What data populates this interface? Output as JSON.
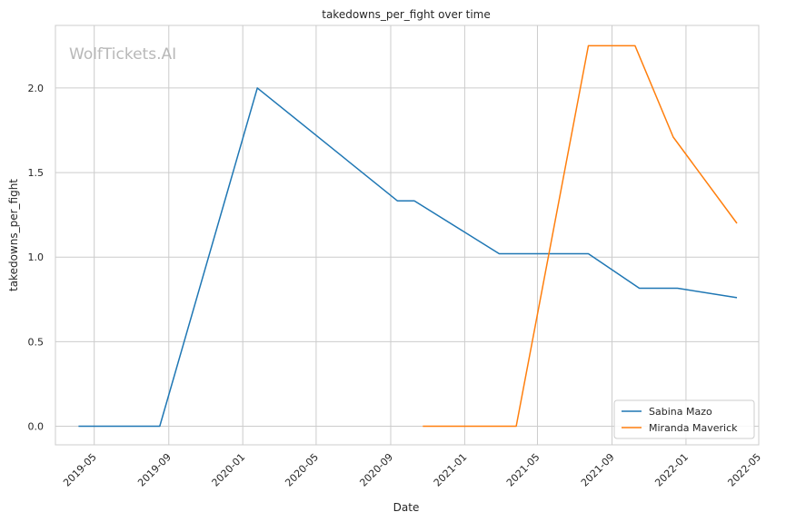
{
  "chart_data": {
    "type": "line",
    "title": "takedowns_per_fight over time",
    "xlabel": "Date",
    "ylabel": "takedowns_per_fight",
    "watermark": "WolfTickets.AI",
    "x_ticks": [
      "2019-05",
      "2019-09",
      "2020-01",
      "2020-05",
      "2020-09",
      "2021-01",
      "2021-05",
      "2021-09",
      "2022-01",
      "2022-05"
    ],
    "y_ticks": [
      "0.0",
      "0.5",
      "1.0",
      "1.5",
      "2.0"
    ],
    "xlim": [
      "2019-02-26",
      "2022-05-01"
    ],
    "ylim": [
      -0.11,
      2.37
    ],
    "grid": true,
    "legend_position": "lower right",
    "series": [
      {
        "name": "Sabina Mazo",
        "color": "#1f77b4",
        "x": [
          "2019-04-05",
          "2019-08-17",
          "2020-01-25",
          "2020-09-12",
          "2020-10-10",
          "2021-02-27",
          "2021-07-24",
          "2021-10-16",
          "2021-12-18",
          "2022-03-26"
        ],
        "y": [
          0.0,
          0.0,
          2.0,
          1.333,
          1.333,
          1.02,
          1.02,
          0.816,
          0.816,
          0.76
        ]
      },
      {
        "name": "Miranda Maverick",
        "color": "#ff7f0e",
        "x": [
          "2020-10-24",
          "2021-03-27",
          "2021-07-24",
          "2021-10-09",
          "2021-12-11",
          "2022-03-26"
        ],
        "y": [
          0.0,
          0.0,
          2.25,
          2.25,
          1.71,
          1.2
        ]
      }
    ]
  }
}
